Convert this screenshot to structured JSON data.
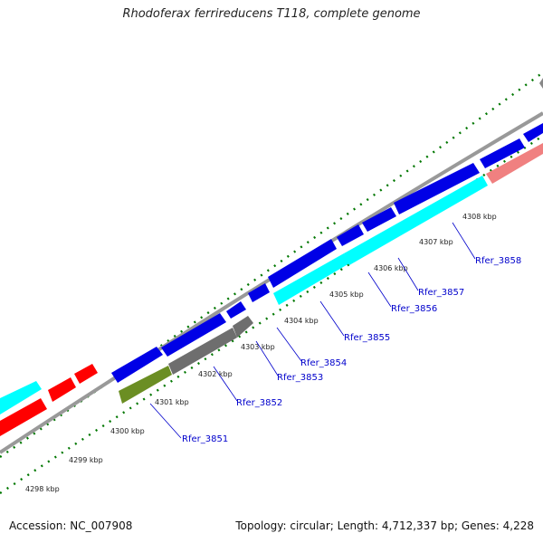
{
  "header": {
    "title": "Rhodoferax ferrireducens T118, complete genome"
  },
  "footer": {
    "accession": "Accession: NC_007908",
    "summary": "Topology: circular; Length: 4,712,337 bp; Genes: 4,228"
  },
  "colors": {
    "forward_cds": "#0000e6",
    "reverse_cds": "#00ffff",
    "other_cds_red": "#ff0000",
    "other_cds_pink": "#f08080",
    "rna_gray": "#6e6e6e",
    "olive": "#6b8e23",
    "backbone": "#999999",
    "tick_green": "#007700",
    "label_blue": "#0000cc"
  },
  "scale": {
    "kbp_labels": [
      "4298 kbp",
      "4299 kbp",
      "4300 kbp",
      "4301 kbp",
      "4302 kbp",
      "4303 kbp",
      "4304 kbp",
      "4305 kbp",
      "4306 kbp",
      "4307 kbp",
      "4308 kbp"
    ]
  },
  "genes": [
    "Rfer_3851",
    "Rfer_3852",
    "Rfer_3853",
    "Rfer_3854",
    "Rfer_3855",
    "Rfer_3856",
    "Rfer_3857",
    "Rfer_3858"
  ]
}
